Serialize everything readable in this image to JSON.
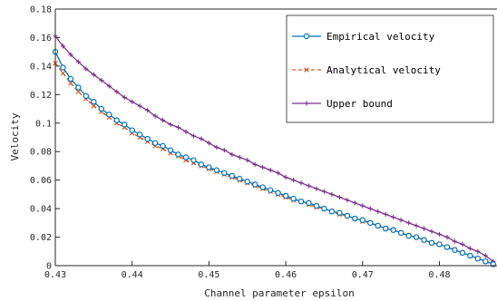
{
  "chart_data": {
    "type": "line",
    "xlabel": "Channel parameter epsilon",
    "ylabel": "Velocity",
    "xlim": [
      0.43,
      0.4875
    ],
    "ylim": [
      0,
      0.18
    ],
    "xticks": [
      0.43,
      0.44,
      0.45,
      0.46,
      0.47,
      0.48
    ],
    "xtick_labels": [
      "0.43",
      "0.44",
      "0.45",
      "0.46",
      "0.47",
      "0.48"
    ],
    "yticks": [
      0,
      0.02,
      0.04,
      0.06,
      0.08,
      0.1,
      0.12,
      0.14,
      0.16,
      0.18
    ],
    "ytick_labels": [
      "0",
      "0.02",
      "0.04",
      "0.06",
      "0.08",
      "0.1",
      "0.12",
      "0.14",
      "0.16",
      "0.18"
    ],
    "grid": false,
    "legend_position": "top-right",
    "series": [
      {
        "name": "Empirical velocity",
        "color": "#0072BD",
        "marker": "circle",
        "linestyle": "solid",
        "x": [
          0.43,
          0.431,
          0.432,
          0.433,
          0.434,
          0.435,
          0.436,
          0.437,
          0.438,
          0.439,
          0.44,
          0.441,
          0.442,
          0.443,
          0.444,
          0.445,
          0.446,
          0.447,
          0.448,
          0.449,
          0.45,
          0.451,
          0.452,
          0.453,
          0.454,
          0.455,
          0.456,
          0.457,
          0.458,
          0.459,
          0.46,
          0.461,
          0.462,
          0.463,
          0.464,
          0.465,
          0.466,
          0.467,
          0.468,
          0.469,
          0.47,
          0.471,
          0.472,
          0.473,
          0.474,
          0.475,
          0.476,
          0.477,
          0.478,
          0.479,
          0.48,
          0.481,
          0.482,
          0.483,
          0.484,
          0.485,
          0.486,
          0.487
        ],
        "y": [
          0.15,
          0.139,
          0.131,
          0.125,
          0.119,
          0.115,
          0.11,
          0.106,
          0.102,
          0.099,
          0.095,
          0.092,
          0.089,
          0.086,
          0.084,
          0.081,
          0.078,
          0.076,
          0.074,
          0.071,
          0.069,
          0.067,
          0.065,
          0.063,
          0.061,
          0.059,
          0.057,
          0.055,
          0.053,
          0.051,
          0.049,
          0.047,
          0.045,
          0.044,
          0.042,
          0.04,
          0.038,
          0.037,
          0.035,
          0.033,
          0.032,
          0.03,
          0.028,
          0.026,
          0.025,
          0.023,
          0.021,
          0.02,
          0.018,
          0.016,
          0.015,
          0.013,
          0.011,
          0.009,
          0.007,
          0.005,
          0.003,
          0.001
        ]
      },
      {
        "name": "Analytical velocity",
        "color": "#D95319",
        "marker": "x",
        "linestyle": "dashed",
        "x": [
          0.43,
          0.431,
          0.432,
          0.433,
          0.434,
          0.435,
          0.436,
          0.437,
          0.438,
          0.439,
          0.44,
          0.441,
          0.442,
          0.443,
          0.444,
          0.445,
          0.446,
          0.447,
          0.448,
          0.449,
          0.45,
          0.451,
          0.452,
          0.453,
          0.454,
          0.455,
          0.456,
          0.457,
          0.458,
          0.459,
          0.46,
          0.461,
          0.462,
          0.463,
          0.464,
          0.465,
          0.466,
          0.467,
          0.468,
          0.469,
          0.47,
          0.471,
          0.472,
          0.473,
          0.474,
          0.475,
          0.476,
          0.477,
          0.478,
          0.479,
          0.48,
          0.481,
          0.482,
          0.483,
          0.484,
          0.485,
          0.486,
          0.487
        ],
        "y": [
          0.142,
          0.135,
          0.128,
          0.122,
          0.117,
          0.112,
          0.108,
          0.104,
          0.1,
          0.097,
          0.093,
          0.09,
          0.087,
          0.084,
          0.082,
          0.079,
          0.077,
          0.074,
          0.072,
          0.07,
          0.068,
          0.066,
          0.064,
          0.062,
          0.06,
          0.058,
          0.056,
          0.054,
          0.052,
          0.05,
          0.048,
          0.046,
          0.045,
          0.043,
          0.041,
          0.04,
          0.038,
          0.036,
          0.035,
          0.033,
          0.031,
          0.03,
          0.028,
          0.026,
          0.025,
          0.023,
          0.021,
          0.02,
          0.018,
          0.016,
          0.015,
          0.013,
          0.011,
          0.009,
          0.007,
          0.005,
          0.003,
          0.001
        ]
      },
      {
        "name": "Upper bound",
        "color": "#7E2F8E",
        "marker": "plus",
        "linestyle": "solid",
        "x": [
          0.43,
          0.431,
          0.432,
          0.433,
          0.434,
          0.435,
          0.436,
          0.437,
          0.438,
          0.439,
          0.44,
          0.441,
          0.442,
          0.443,
          0.444,
          0.445,
          0.446,
          0.447,
          0.448,
          0.449,
          0.45,
          0.451,
          0.452,
          0.453,
          0.454,
          0.455,
          0.456,
          0.457,
          0.458,
          0.459,
          0.46,
          0.461,
          0.462,
          0.463,
          0.464,
          0.465,
          0.466,
          0.467,
          0.468,
          0.469,
          0.47,
          0.471,
          0.472,
          0.473,
          0.474,
          0.475,
          0.476,
          0.477,
          0.478,
          0.479,
          0.48,
          0.481,
          0.482,
          0.483,
          0.484,
          0.485,
          0.486,
          0.487
        ],
        "y": [
          0.161,
          0.154,
          0.148,
          0.143,
          0.138,
          0.134,
          0.13,
          0.126,
          0.122,
          0.118,
          0.115,
          0.112,
          0.109,
          0.105,
          0.102,
          0.099,
          0.097,
          0.094,
          0.091,
          0.089,
          0.086,
          0.083,
          0.081,
          0.078,
          0.076,
          0.074,
          0.071,
          0.069,
          0.067,
          0.065,
          0.062,
          0.06,
          0.058,
          0.056,
          0.054,
          0.052,
          0.05,
          0.048,
          0.046,
          0.044,
          0.042,
          0.04,
          0.038,
          0.036,
          0.034,
          0.032,
          0.03,
          0.028,
          0.026,
          0.024,
          0.022,
          0.02,
          0.017,
          0.015,
          0.012,
          0.01,
          0.007,
          0.003
        ]
      }
    ]
  }
}
